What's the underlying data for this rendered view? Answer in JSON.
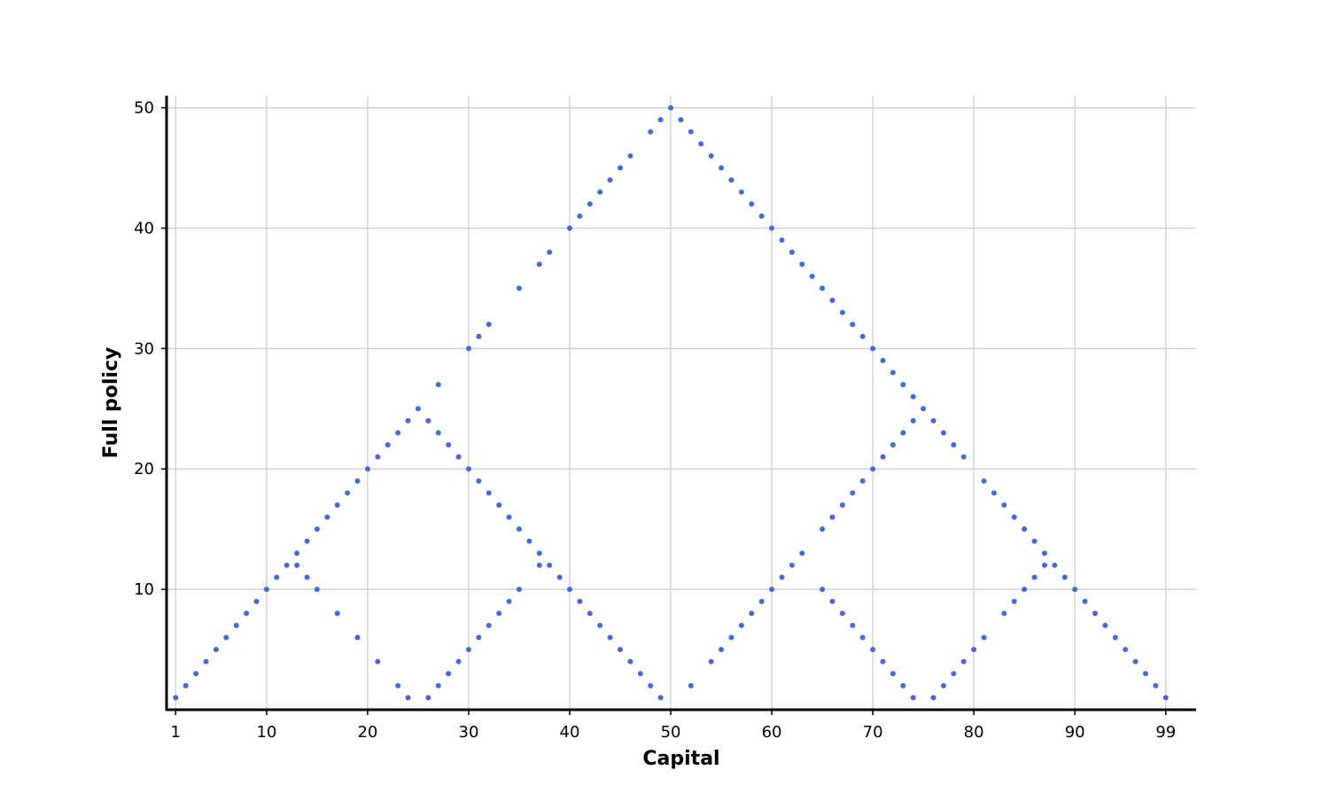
{
  "colors": {
    "points": "#4169e1",
    "grid": "#d3d3d3",
    "axis": "#000000",
    "background": "#ffffff"
  },
  "chart_data": {
    "type": "scatter",
    "title": "",
    "xlabel": "Capital",
    "ylabel": "Full policy",
    "xlim": [
      0.1,
      102
    ],
    "ylim": [
      0,
      51
    ],
    "xticks": [
      1,
      10,
      20,
      30,
      40,
      50,
      60,
      70,
      80,
      90,
      99
    ],
    "yticks": [
      10,
      20,
      30,
      40,
      50
    ],
    "grid": true,
    "legend": "none",
    "series": [
      {
        "points": [
          [
            1,
            1
          ],
          [
            2,
            2
          ],
          [
            3,
            3
          ],
          [
            4,
            4
          ],
          [
            5,
            5
          ],
          [
            6,
            6
          ],
          [
            7,
            7
          ],
          [
            8,
            8
          ],
          [
            9,
            9
          ],
          [
            10,
            10
          ],
          [
            11,
            11
          ],
          [
            12,
            12
          ],
          [
            13,
            13
          ],
          [
            14,
            14
          ],
          [
            15,
            15
          ],
          [
            16,
            16
          ],
          [
            17,
            17
          ],
          [
            18,
            18
          ],
          [
            19,
            19
          ],
          [
            20,
            20
          ],
          [
            21,
            21
          ],
          [
            22,
            22
          ],
          [
            23,
            23
          ],
          [
            24,
            24
          ],
          [
            25,
            25
          ],
          [
            26,
            24
          ],
          [
            27,
            23
          ],
          [
            28,
            22
          ],
          [
            29,
            21
          ],
          [
            30,
            20
          ],
          [
            31,
            19
          ],
          [
            32,
            18
          ],
          [
            33,
            17
          ],
          [
            34,
            16
          ],
          [
            35,
            15
          ],
          [
            36,
            14
          ],
          [
            37,
            13
          ],
          [
            38,
            12
          ],
          [
            39,
            11
          ],
          [
            40,
            10
          ],
          [
            41,
            9
          ],
          [
            42,
            8
          ],
          [
            43,
            7
          ],
          [
            44,
            6
          ],
          [
            45,
            5
          ],
          [
            46,
            4
          ],
          [
            47,
            3
          ],
          [
            48,
            2
          ],
          [
            49,
            1
          ],
          [
            13,
            12
          ],
          [
            14,
            11
          ],
          [
            15,
            10
          ],
          [
            17,
            8
          ],
          [
            19,
            6
          ],
          [
            21,
            4
          ],
          [
            23,
            2
          ],
          [
            24,
            1
          ],
          [
            26,
            1
          ],
          [
            27,
            2
          ],
          [
            28,
            3
          ],
          [
            29,
            4
          ],
          [
            30,
            5
          ],
          [
            31,
            6
          ],
          [
            32,
            7
          ],
          [
            33,
            8
          ],
          [
            34,
            9
          ],
          [
            35,
            10
          ],
          [
            37,
            12
          ],
          [
            27,
            27
          ],
          [
            30,
            30
          ],
          [
            31,
            31
          ],
          [
            32,
            32
          ],
          [
            35,
            35
          ],
          [
            37,
            37
          ],
          [
            38,
            38
          ],
          [
            40,
            40
          ],
          [
            41,
            41
          ],
          [
            42,
            42
          ],
          [
            43,
            43
          ],
          [
            44,
            44
          ],
          [
            45,
            45
          ],
          [
            46,
            46
          ],
          [
            48,
            48
          ],
          [
            49,
            49
          ],
          [
            50,
            50
          ],
          [
            51,
            49
          ],
          [
            52,
            48
          ],
          [
            53,
            47
          ],
          [
            54,
            46
          ],
          [
            55,
            45
          ],
          [
            56,
            44
          ],
          [
            57,
            43
          ],
          [
            58,
            42
          ],
          [
            59,
            41
          ],
          [
            60,
            40
          ],
          [
            61,
            39
          ],
          [
            62,
            38
          ],
          [
            63,
            37
          ],
          [
            64,
            36
          ],
          [
            65,
            35
          ],
          [
            66,
            34
          ],
          [
            67,
            33
          ],
          [
            68,
            32
          ],
          [
            69,
            31
          ],
          [
            70,
            30
          ],
          [
            71,
            29
          ],
          [
            72,
            28
          ],
          [
            73,
            27
          ],
          [
            74,
            26
          ],
          [
            75,
            25
          ],
          [
            76,
            24
          ],
          [
            77,
            23
          ],
          [
            78,
            22
          ],
          [
            79,
            21
          ],
          [
            81,
            19
          ],
          [
            82,
            18
          ],
          [
            83,
            17
          ],
          [
            84,
            16
          ],
          [
            85,
            15
          ],
          [
            86,
            14
          ],
          [
            87,
            13
          ],
          [
            88,
            12
          ],
          [
            89,
            11
          ],
          [
            90,
            10
          ],
          [
            91,
            9
          ],
          [
            92,
            8
          ],
          [
            93,
            7
          ],
          [
            94,
            6
          ],
          [
            95,
            5
          ],
          [
            96,
            4
          ],
          [
            97,
            3
          ],
          [
            98,
            2
          ],
          [
            99,
            1
          ],
          [
            52,
            2
          ],
          [
            54,
            4
          ],
          [
            55,
            5
          ],
          [
            56,
            6
          ],
          [
            57,
            7
          ],
          [
            58,
            8
          ],
          [
            59,
            9
          ],
          [
            60,
            10
          ],
          [
            61,
            11
          ],
          [
            62,
            12
          ],
          [
            63,
            13
          ],
          [
            65,
            15
          ],
          [
            66,
            16
          ],
          [
            67,
            17
          ],
          [
            68,
            18
          ],
          [
            69,
            19
          ],
          [
            70,
            20
          ],
          [
            71,
            21
          ],
          [
            72,
            22
          ],
          [
            73,
            23
          ],
          [
            74,
            24
          ],
          [
            65,
            10
          ],
          [
            66,
            9
          ],
          [
            67,
            8
          ],
          [
            68,
            7
          ],
          [
            69,
            6
          ],
          [
            70,
            5
          ],
          [
            71,
            4
          ],
          [
            72,
            3
          ],
          [
            73,
            2
          ],
          [
            74,
            1
          ],
          [
            76,
            1
          ],
          [
            77,
            2
          ],
          [
            78,
            3
          ],
          [
            79,
            4
          ],
          [
            80,
            5
          ],
          [
            81,
            6
          ],
          [
            83,
            8
          ],
          [
            84,
            9
          ],
          [
            85,
            10
          ],
          [
            86,
            11
          ],
          [
            87,
            12
          ]
        ]
      }
    ]
  }
}
